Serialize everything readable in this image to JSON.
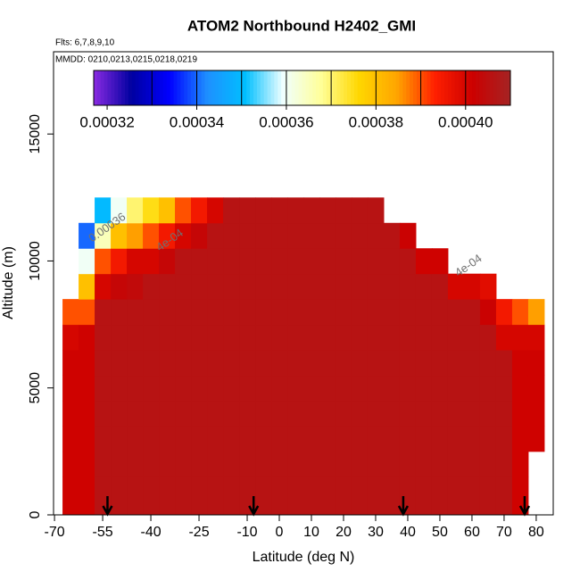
{
  "chart_data": {
    "type": "heatmap",
    "title": "ATOM2 Northbound H2402_GMI",
    "flights": "Flts: 6,7,8,9,10",
    "dates": "MMDD: 0210,0213,0215,0218,0219",
    "x_label": "Latitude (deg N)",
    "y_label": "Altitude (m)",
    "xlim": [
      -70.3,
      85.3
    ],
    "xticks": [
      -70,
      -55,
      -40,
      -25,
      -10,
      0,
      10,
      20,
      30,
      40,
      50,
      60,
      70,
      80
    ],
    "ylim": [
      0,
      18240
    ],
    "yticks": [
      0,
      5000,
      10000,
      15000
    ],
    "x": [
      -65,
      -60,
      -55,
      -50,
      -45,
      -40,
      -35,
      -30,
      -25,
      -20,
      -15,
      -10,
      -5,
      0,
      5,
      10,
      15,
      20,
      25,
      30,
      35,
      40,
      45,
      50,
      55,
      60,
      65,
      70,
      75,
      80
    ],
    "cell_width": 5,
    "y_edges": [
      0,
      1500,
      2500,
      3500,
      4500,
      5500,
      6500,
      7500,
      8500,
      9500,
      10500,
      11500,
      12500
    ],
    "z": [
      [
        0.000401,
        0.000401,
        0.000401,
        0.000401,
        0.000401,
        0.000401,
        0.0004,
        0.00039
      ],
      [
        0.000401,
        0.000401,
        0.000401,
        0.000401,
        0.000401,
        0.000401,
        0.000401,
        0.00039,
        0.00038,
        0.00036,
        0.00034
      ],
      [
        0.000406,
        0.000406,
        0.000406,
        0.000406,
        0.000406,
        0.000406,
        0.000406,
        0.000406,
        0.0004,
        0.00039,
        0.000365,
        0.00035
      ],
      [
        0.000406,
        0.000406,
        0.000406,
        0.000406,
        0.000406,
        0.000406,
        0.000406,
        0.000406,
        0.000403,
        0.000395,
        0.00038,
        0.00036
      ],
      [
        0.000406,
        0.000406,
        0.000406,
        0.000406,
        0.000406,
        0.000406,
        0.000406,
        0.000406,
        0.000404,
        0.0004,
        0.000385,
        0.00037
      ],
      [
        0.000406,
        0.000406,
        0.000406,
        0.000406,
        0.000406,
        0.000406,
        0.000406,
        0.000406,
        0.000406,
        0.0004,
        0.00039,
        0.000375
      ],
      [
        0.000406,
        0.000406,
        0.000406,
        0.000406,
        0.000406,
        0.000406,
        0.000406,
        0.000406,
        0.000406,
        0.000403,
        0.000395,
        0.00038
      ],
      [
        0.000406,
        0.000406,
        0.000406,
        0.000406,
        0.000406,
        0.000406,
        0.000406,
        0.000406,
        0.000406,
        0.000406,
        0.0004,
        0.00039
      ],
      [
        0.000406,
        0.000406,
        0.000406,
        0.000406,
        0.000406,
        0.000406,
        0.000406,
        0.000406,
        0.000406,
        0.000406,
        0.000403,
        0.000395
      ],
      [
        0.000406,
        0.000406,
        0.000406,
        0.000406,
        0.000406,
        0.000406,
        0.000406,
        0.000406,
        0.000406,
        0.000406,
        0.000406,
        0.0004
      ],
      [
        0.000406,
        0.000406,
        0.000406,
        0.000406,
        0.000406,
        0.000406,
        0.000406,
        0.000406,
        0.000406,
        0.000406,
        0.000406,
        0.000406
      ],
      [
        0.000406,
        0.000406,
        0.000406,
        0.000406,
        0.000406,
        0.000406,
        0.000406,
        0.000406,
        0.000406,
        0.000406,
        0.000406,
        0.000406
      ],
      [
        0.000406,
        0.000406,
        0.000406,
        0.000406,
        0.000406,
        0.000406,
        0.000406,
        0.000406,
        0.000406,
        0.000406,
        0.000406,
        0.000406
      ],
      [
        0.000406,
        0.000406,
        0.000406,
        0.000406,
        0.000406,
        0.000406,
        0.000406,
        0.000406,
        0.000406,
        0.000406,
        0.000406,
        0.000406
      ],
      [
        0.000406,
        0.000406,
        0.000406,
        0.000406,
        0.000406,
        0.000406,
        0.000406,
        0.000406,
        0.000406,
        0.000406,
        0.000406,
        0.000406
      ],
      [
        0.000406,
        0.000406,
        0.000406,
        0.000406,
        0.000406,
        0.000406,
        0.000406,
        0.000406,
        0.000406,
        0.000406,
        0.000406,
        0.000406
      ],
      [
        0.000406,
        0.000406,
        0.000406,
        0.000406,
        0.000406,
        0.000406,
        0.000406,
        0.000406,
        0.000406,
        0.000406,
        0.000406,
        0.000406
      ],
      [
        0.000406,
        0.000406,
        0.000406,
        0.000406,
        0.000406,
        0.000406,
        0.000406,
        0.000406,
        0.000406,
        0.000406,
        0.000406,
        0.000406
      ],
      [
        0.000406,
        0.000406,
        0.000406,
        0.000406,
        0.000406,
        0.000406,
        0.000406,
        0.000406,
        0.000406,
        0.000406,
        0.000406,
        0.000406
      ],
      [
        0.000406,
        0.000406,
        0.000406,
        0.000406,
        0.000406,
        0.000406,
        0.000406,
        0.000406,
        0.000406,
        0.000406,
        0.000406,
        0.000406
      ],
      [
        0.000406,
        0.000406,
        0.000406,
        0.000406,
        0.000406,
        0.000406,
        0.000406,
        0.000406,
        0.000406,
        0.000406,
        0.000406
      ],
      [
        0.000406,
        0.000406,
        0.000406,
        0.000406,
        0.000406,
        0.000406,
        0.000406,
        0.000406,
        0.000406,
        0.000406,
        0.000402
      ],
      [
        0.000406,
        0.000406,
        0.000406,
        0.000406,
        0.000406,
        0.000406,
        0.000406,
        0.000406,
        0.000406,
        0.000401
      ],
      [
        0.000406,
        0.000406,
        0.000406,
        0.000406,
        0.000406,
        0.000406,
        0.000406,
        0.000406,
        0.000406,
        0.000401
      ],
      [
        0.000406,
        0.000406,
        0.000406,
        0.000406,
        0.000406,
        0.000406,
        0.000406,
        0.000406,
        0.0004
      ],
      [
        0.000406,
        0.000406,
        0.000406,
        0.000406,
        0.000406,
        0.000406,
        0.000406,
        0.000406,
        0.0004
      ],
      [
        0.000406,
        0.000406,
        0.000406,
        0.000406,
        0.000406,
        0.000406,
        0.000406,
        0.000402,
        0.000398
      ],
      [
        0.000406,
        0.000406,
        0.000406,
        0.000406,
        0.000406,
        0.000406,
        0.0004,
        0.000395
      ],
      [
        0.000401,
        0.000401,
        0.000401,
        0.000401,
        0.000401,
        0.000401,
        0.0004,
        0.00039
      ],
      [
        null,
        null,
        0.000401,
        0.000401,
        0.000401,
        0.000401,
        0.0004,
        0.000385
      ]
    ],
    "clim": [
      0.000317,
      0.00041
    ],
    "colormap": [
      "#8a2be2",
      "#0000a0",
      "#0000ff",
      "#1e90ff",
      "#00bfff",
      "#f0ffff",
      "#ffff99",
      "#ffd700",
      "#ffa500",
      "#ff2000",
      "#cc0000",
      "#a52424"
    ],
    "colorbar_ticks": [
      0.00032,
      0.00034,
      0.00036,
      0.00038,
      {
        "value": 0.0004,
        "label": "0.00040"
      }
    ],
    "contour_levels": [
      0.00033,
      0.00034,
      0.00035,
      0.00036,
      0.00037,
      0.00038,
      0.00039,
      0.0004
    ],
    "contour_labels": [
      {
        "text": "0.00036",
        "x": -53.5,
        "y": 11300
      },
      {
        "text": "4e-04",
        "x": -34,
        "y": 10800
      },
      {
        "text": "4e-04",
        "x": 59,
        "y": 9800
      }
    ],
    "arrows": [
      -53.5,
      -8,
      38.6,
      76.4
    ]
  }
}
